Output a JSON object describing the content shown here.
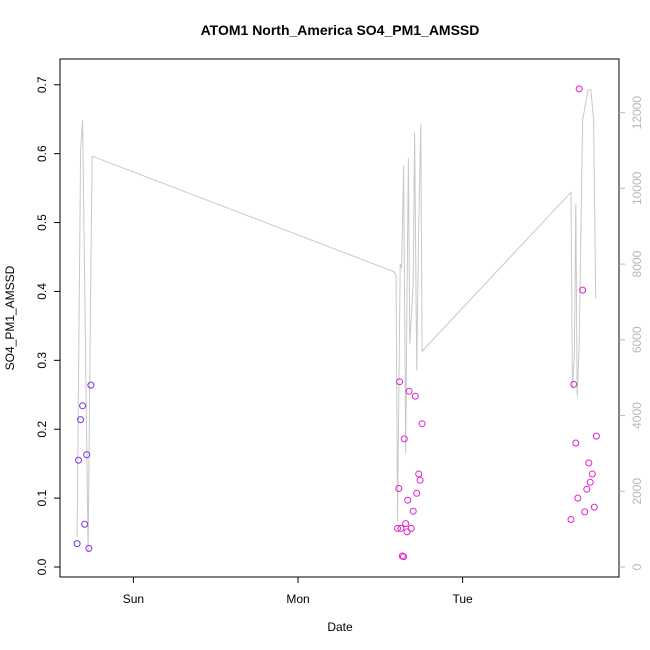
{
  "chart_data": {
    "type": "scatter",
    "title": "ATOM1 North_America SO4_PM1_AMSSD",
    "xlabel": "Date",
    "ylabel": "SO4_PM1_AMSSD",
    "x_ticks": [
      "Sun",
      "Mon",
      "Tue"
    ],
    "x_tick_hours": [
      24,
      48,
      72
    ],
    "xlim_hours": [
      13.3,
      94.8
    ],
    "ylim": [
      0,
      0.72
    ],
    "y_ticks": [
      "0.0",
      "0.1",
      "0.2",
      "0.3",
      "0.4",
      "0.5",
      "0.6",
      "0.7"
    ],
    "y2lim": [
      0,
      13100
    ],
    "y2_ticks": [
      "0",
      "2000",
      "4000",
      "6000",
      "8000",
      "10000",
      "12000"
    ],
    "colors": {
      "points_early": "#7b2fe8",
      "points_late": "#e020d0",
      "line": "#c8c8c8",
      "axis": "#000000",
      "right_axis": "#b8b8b8"
    },
    "points": [
      {
        "hour": 15.8,
        "value": 0.034
      },
      {
        "hour": 16.0,
        "value": 0.155
      },
      {
        "hour": 16.3,
        "value": 0.214
      },
      {
        "hour": 16.6,
        "value": 0.234
      },
      {
        "hour": 16.9,
        "value": 0.062
      },
      {
        "hour": 17.2,
        "value": 0.163
      },
      {
        "hour": 17.5,
        "value": 0.027
      },
      {
        "hour": 17.8,
        "value": 0.264
      },
      {
        "hour": 62.5,
        "value": 0.056
      },
      {
        "hour": 62.7,
        "value": 0.114
      },
      {
        "hour": 62.8,
        "value": 0.269
      },
      {
        "hour": 63.0,
        "value": 0.056
      },
      {
        "hour": 63.2,
        "value": 0.016
      },
      {
        "hour": 63.4,
        "value": 0.015
      },
      {
        "hour": 63.5,
        "value": 0.186
      },
      {
        "hour": 63.7,
        "value": 0.063
      },
      {
        "hour": 63.9,
        "value": 0.051
      },
      {
        "hour": 64.0,
        "value": 0.097
      },
      {
        "hour": 64.2,
        "value": 0.255
      },
      {
        "hour": 64.5,
        "value": 0.056
      },
      {
        "hour": 64.8,
        "value": 0.081
      },
      {
        "hour": 65.1,
        "value": 0.248
      },
      {
        "hour": 65.3,
        "value": 0.107
      },
      {
        "hour": 65.6,
        "value": 0.135
      },
      {
        "hour": 65.8,
        "value": 0.126
      },
      {
        "hour": 66.1,
        "value": 0.208
      },
      {
        "hour": 87.8,
        "value": 0.069
      },
      {
        "hour": 88.2,
        "value": 0.265
      },
      {
        "hour": 88.5,
        "value": 0.18
      },
      {
        "hour": 88.8,
        "value": 0.1
      },
      {
        "hour": 89.0,
        "value": 0.694
      },
      {
        "hour": 89.5,
        "value": 0.402
      },
      {
        "hour": 89.8,
        "value": 0.08
      },
      {
        "hour": 90.1,
        "value": 0.113
      },
      {
        "hour": 90.4,
        "value": 0.151
      },
      {
        "hour": 90.6,
        "value": 0.123
      },
      {
        "hour": 90.9,
        "value": 0.135
      },
      {
        "hour": 91.2,
        "value": 0.087
      },
      {
        "hour": 91.5,
        "value": 0.19
      }
    ],
    "line_series": [
      {
        "hour": 15.8,
        "value": 800
      },
      {
        "hour": 16.3,
        "value": 11000
      },
      {
        "hour": 16.6,
        "value": 11800
      },
      {
        "hour": 17.0,
        "value": 6000
      },
      {
        "hour": 17.4,
        "value": 400
      },
      {
        "hour": 17.8,
        "value": 8000
      },
      {
        "hour": 18.0,
        "value": 10850
      },
      {
        "hour": 62.0,
        "value": 7800
      },
      {
        "hour": 62.3,
        "value": 7700
      },
      {
        "hour": 62.5,
        "value": 1200
      },
      {
        "hour": 62.9,
        "value": 8000
      },
      {
        "hour": 63.1,
        "value": 7900
      },
      {
        "hour": 63.4,
        "value": 10600
      },
      {
        "hour": 63.7,
        "value": 3000
      },
      {
        "hour": 63.9,
        "value": 7500
      },
      {
        "hour": 64.1,
        "value": 10800
      },
      {
        "hour": 64.3,
        "value": 5900
      },
      {
        "hour": 64.8,
        "value": 7500
      },
      {
        "hour": 65.0,
        "value": 11500
      },
      {
        "hour": 65.3,
        "value": 5200
      },
      {
        "hour": 65.6,
        "value": 9000
      },
      {
        "hour": 65.9,
        "value": 11700
      },
      {
        "hour": 66.1,
        "value": 5700
      },
      {
        "hour": 87.8,
        "value": 9900
      },
      {
        "hour": 88.0,
        "value": 4700
      },
      {
        "hour": 88.3,
        "value": 5600
      },
      {
        "hour": 88.5,
        "value": 9600
      },
      {
        "hour": 88.7,
        "value": 4500
      },
      {
        "hour": 89.0,
        "value": 5900
      },
      {
        "hour": 89.5,
        "value": 11800
      },
      {
        "hour": 90.3,
        "value": 12600
      },
      {
        "hour": 90.7,
        "value": 12600
      },
      {
        "hour": 91.1,
        "value": 11800
      },
      {
        "hour": 91.4,
        "value": 7100
      }
    ]
  }
}
